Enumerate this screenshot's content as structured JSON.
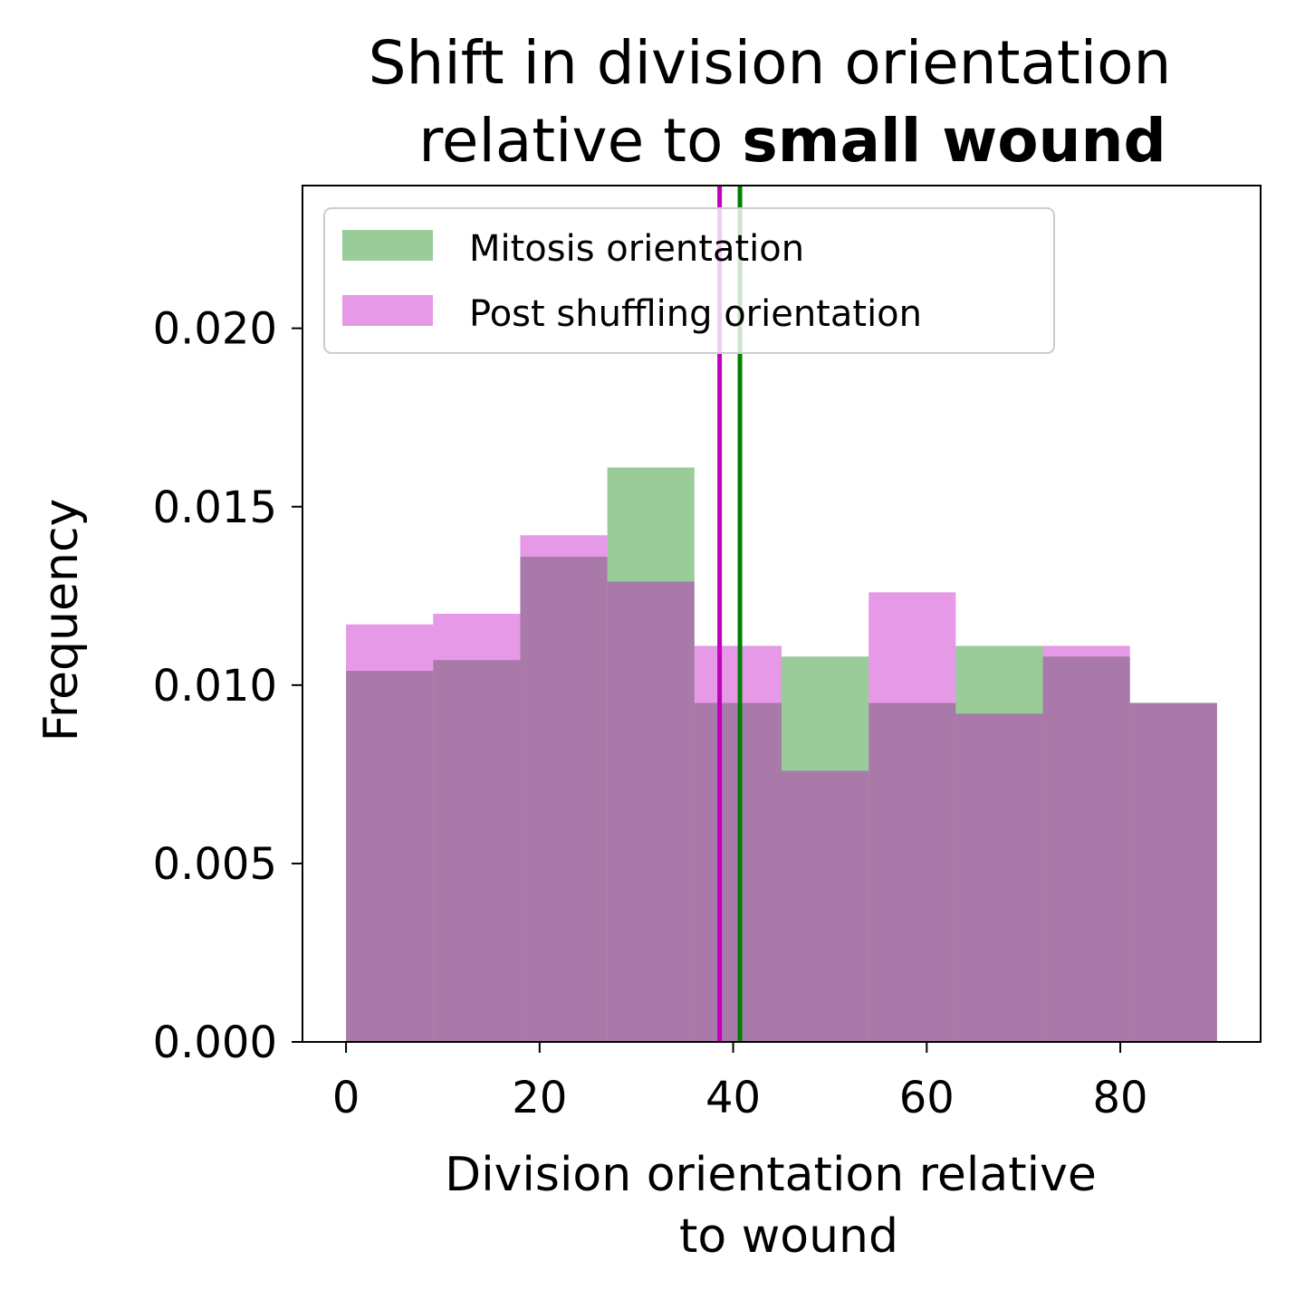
{
  "chart_data": {
    "type": "bar",
    "title_line1": "Shift in division orientation",
    "title_line2_prefix": "relative to ",
    "title_line2_bold": "small wound",
    "xlabel_line1": "Division orientation relative",
    "xlabel_line2": "to wound",
    "ylabel": "Frequency",
    "xlim": [
      -4.5,
      94.5
    ],
    "ylim": [
      0,
      0.024
    ],
    "xticks": [
      0,
      20,
      40,
      60,
      80
    ],
    "yticks": [
      0.0,
      0.005,
      0.01,
      0.015,
      0.02
    ],
    "ytick_labels": [
      "0.000",
      "0.005",
      "0.010",
      "0.015",
      "0.020"
    ],
    "bin_edges": [
      0,
      9,
      18,
      27,
      36,
      45,
      54,
      63,
      72,
      81,
      90
    ],
    "series": [
      {
        "name": "Mitosis orientation",
        "color": "#008000",
        "opacity": 0.4,
        "values": [
          0.0104,
          0.0107,
          0.0136,
          0.0161,
          0.0095,
          0.0108,
          0.0095,
          0.0111,
          0.0108,
          0.0095
        ],
        "mean_line": 40.7,
        "mean_color": "#008000"
      },
      {
        "name": "Post shuffling orientation",
        "color": "#c000c0",
        "opacity": 0.4,
        "values": [
          0.0117,
          0.012,
          0.0142,
          0.0129,
          0.0111,
          0.0076,
          0.0126,
          0.0092,
          0.0111,
          0.0095
        ],
        "mean_line": 38.6,
        "mean_color": "#bf00bf"
      }
    ],
    "legend_position": "top-left",
    "grid": false
  }
}
